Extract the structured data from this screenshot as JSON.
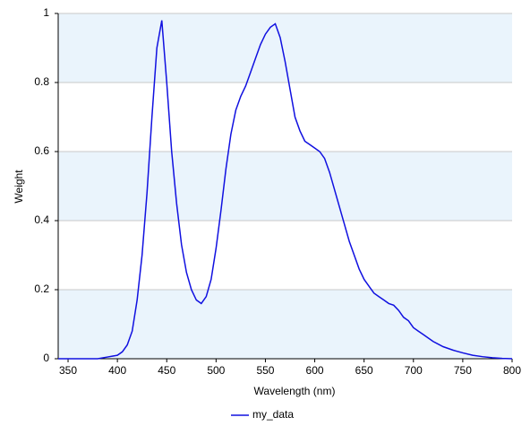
{
  "chart_data": {
    "type": "line",
    "xlabel": "Wavelength (nm)",
    "ylabel": "Weight",
    "x": [
      340,
      350,
      360,
      370,
      380,
      390,
      400,
      405,
      410,
      415,
      420,
      425,
      430,
      435,
      440,
      445,
      450,
      455,
      460,
      465,
      470,
      475,
      480,
      485,
      490,
      495,
      500,
      505,
      510,
      515,
      520,
      525,
      530,
      535,
      540,
      545,
      550,
      555,
      560,
      565,
      570,
      575,
      580,
      585,
      590,
      595,
      600,
      605,
      610,
      615,
      620,
      625,
      630,
      635,
      640,
      645,
      650,
      655,
      660,
      665,
      670,
      675,
      680,
      685,
      690,
      695,
      700,
      705,
      710,
      715,
      720,
      730,
      740,
      750,
      760,
      770,
      780,
      790,
      800
    ],
    "series": [
      {
        "name": "my_data",
        "color": "#1010e0",
        "values": [
          0,
          0,
          0,
          0,
          0,
          0.005,
          0.01,
          0.02,
          0.04,
          0.08,
          0.17,
          0.3,
          0.48,
          0.7,
          0.9,
          0.98,
          0.8,
          0.6,
          0.45,
          0.33,
          0.25,
          0.2,
          0.17,
          0.16,
          0.18,
          0.23,
          0.32,
          0.43,
          0.55,
          0.65,
          0.72,
          0.76,
          0.79,
          0.83,
          0.87,
          0.91,
          0.94,
          0.96,
          0.97,
          0.93,
          0.86,
          0.78,
          0.7,
          0.66,
          0.63,
          0.62,
          0.61,
          0.6,
          0.58,
          0.54,
          0.49,
          0.44,
          0.39,
          0.34,
          0.3,
          0.26,
          0.23,
          0.21,
          0.19,
          0.18,
          0.17,
          0.16,
          0.155,
          0.14,
          0.12,
          0.11,
          0.09,
          0.08,
          0.07,
          0.06,
          0.05,
          0.035,
          0.025,
          0.017,
          0.01,
          0.006,
          0.003,
          0.001,
          0
        ]
      }
    ],
    "xlim": [
      340,
      800
    ],
    "ylim": [
      0,
      1
    ],
    "xticks": [
      350,
      400,
      450,
      500,
      550,
      600,
      650,
      700,
      750,
      800
    ],
    "yticks": [
      0,
      0.2,
      0.4,
      0.6,
      0.8,
      1
    ],
    "grid": true,
    "legend": "bottom"
  }
}
